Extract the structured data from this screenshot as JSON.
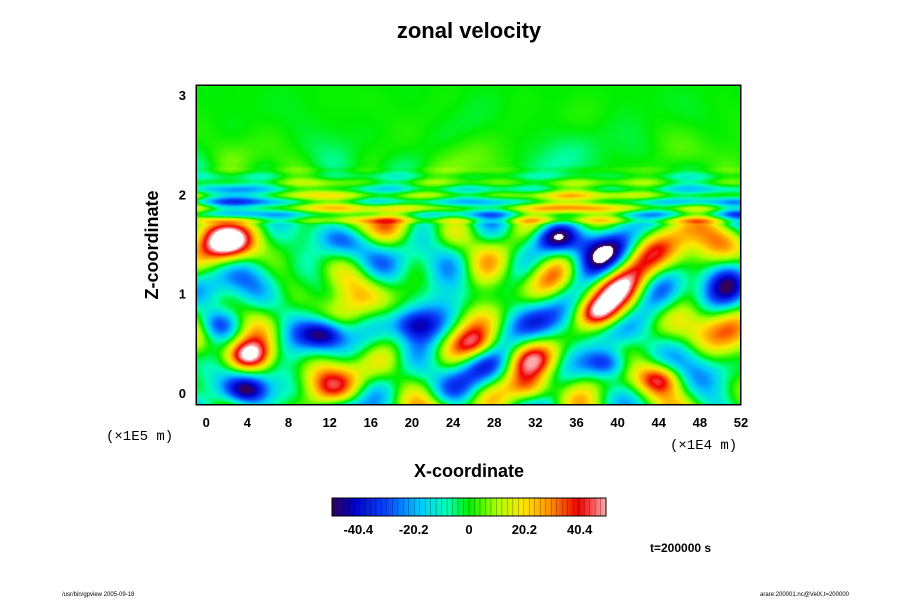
{
  "chart_data": {
    "type": "heatmap",
    "title": "zonal velocity",
    "xlabel": "X-coordinate",
    "ylabel": "Z-coordinate",
    "x_scale_note": "(×1E4 m)",
    "y_scale_note": "(×1E5 m)",
    "xlim": [
      -1,
      52
    ],
    "ylim": [
      -0.12,
      3.1
    ],
    "x_ticks": [
      0,
      4,
      8,
      12,
      16,
      20,
      24,
      28,
      32,
      36,
      40,
      44,
      48,
      52
    ],
    "y_ticks": [
      0,
      1,
      2,
      3
    ],
    "colorbar": {
      "range": [
        -50,
        50
      ],
      "ticks": [
        -40.4,
        -20.2,
        0,
        20.2,
        40.4
      ],
      "tick_labels": [
        "-40.4",
        "-20.2",
        "0",
        "20.2",
        "40.4"
      ]
    },
    "annotation": "t=200000 s",
    "features": [
      {
        "x": 4,
        "z": 0.38,
        "value": 55
      },
      {
        "x": 4,
        "z": 0.03,
        "value": -55
      },
      {
        "x": 11.5,
        "z": 0.6,
        "value": -55
      },
      {
        "x": 31.5,
        "z": 0.02,
        "value": 55
      },
      {
        "x": 39,
        "z": 0.3,
        "value": -55
      },
      {
        "x": 26.5,
        "z": 0.48,
        "value": 35
      },
      {
        "x": 38,
        "z": 0.8,
        "value": 40
      },
      {
        "x": 34,
        "z": 1.58,
        "value": -40
      },
      {
        "x": 14,
        "z": 1.72,
        "value": 35
      },
      {
        "x": 2,
        "z": 1.5,
        "value": 30
      },
      {
        "x": 1,
        "z": 0.7,
        "value": -35
      },
      {
        "x": 20,
        "z": 0.7,
        "value": -30
      },
      {
        "x": 44,
        "z": 0.15,
        "value": 40
      }
    ]
  },
  "footer": {
    "left": "/usr/bin/gpview 2005-09-18",
    "right": "arare:200001.nc@VelX,t=200000"
  }
}
